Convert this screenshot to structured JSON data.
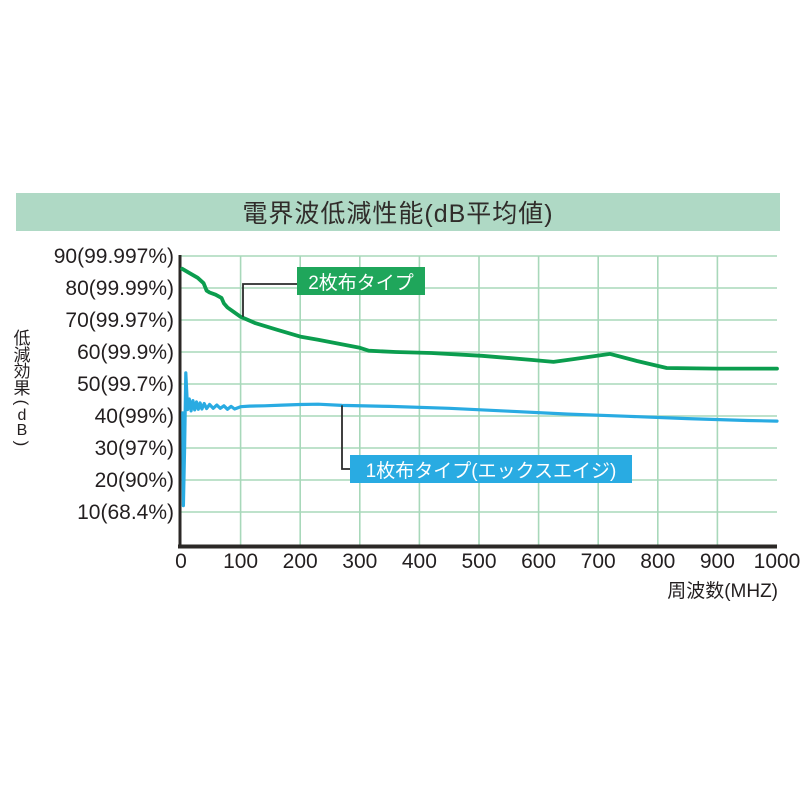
{
  "title": "電界波低減性能(dB平均値)",
  "colors": {
    "title_bg": "#afd9c5",
    "grid": "#a8d8ba",
    "axis": "#2b2826",
    "text": "#231f20",
    "connector": "#2b2b2b",
    "green_series": "#0b9d4e",
    "green_box": "#1fa65b",
    "blue_series": "#29abe2",
    "blue_box": "#29abe2"
  },
  "chart_data": {
    "type": "line",
    "title": "電界波低減性能(dB平均値)",
    "xlabel": "周波数(MHZ)",
    "ylabel": "低減効果(dB)",
    "xlim": [
      0,
      1000
    ],
    "ylim": [
      0,
      90
    ],
    "grid": true,
    "legend_position": "inline-callouts",
    "x_ticks": [
      0,
      100,
      200,
      300,
      400,
      500,
      600,
      700,
      800,
      900,
      1000
    ],
    "y_ticks": [
      {
        "value": 90,
        "label": "90(99.997%)"
      },
      {
        "value": 80,
        "label": "80(99.99%)"
      },
      {
        "value": 70,
        "label": "70(99.97%)"
      },
      {
        "value": 60,
        "label": "60(99.9%)"
      },
      {
        "value": 50,
        "label": "50(99.7%)"
      },
      {
        "value": 40,
        "label": "40(99%)"
      },
      {
        "value": 30,
        "label": "30(97%)"
      },
      {
        "value": 20,
        "label": "20(90%)"
      },
      {
        "value": 10,
        "label": "10(68.4%)"
      }
    ],
    "series": [
      {
        "name": "2枚布タイプ",
        "color": "#0b9d4e",
        "x": [
          2,
          15,
          28,
          38,
          43,
          48,
          58,
          68,
          72,
          78,
          88,
          100,
          125,
          160,
          200,
          230,
          265,
          300,
          315,
          360,
          420,
          505,
          590,
          625,
          660,
          720,
          765,
          815,
          900,
          1000
        ],
        "y": [
          86,
          84.6,
          83.2,
          81.5,
          79.2,
          78.6,
          77.9,
          76.9,
          75.2,
          73.9,
          72.6,
          71,
          69,
          67,
          64.8,
          63.8,
          62.6,
          61.3,
          60.4,
          60,
          59.7,
          58.8,
          57.5,
          56.9,
          57.8,
          59.4,
          57.2,
          55,
          54.8,
          54.8
        ]
      },
      {
        "name": "1枚布タイプ(エックスエイジ)",
        "color": "#29abe2",
        "x": [
          3,
          4,
          6,
          8,
          11,
          14,
          17,
          20,
          23,
          26,
          29,
          32,
          35,
          39,
          43,
          48,
          54,
          60,
          66,
          72,
          78,
          84,
          90,
          100,
          115,
          140,
          170,
          200,
          230,
          270,
          350,
          450,
          550,
          650,
          750,
          850,
          950,
          1000
        ],
        "y": [
          41,
          12,
          30,
          53.5,
          42,
          45.3,
          41.6,
          44.8,
          41.9,
          44.4,
          42.1,
          44.1,
          42.2,
          43.9,
          42.3,
          43.6,
          42.4,
          43.4,
          42.4,
          43.2,
          42.1,
          43,
          42.2,
          42.9,
          43.1,
          43.2,
          43.4,
          43.6,
          43.7,
          43.3,
          43,
          42.4,
          41.5,
          40.6,
          39.9,
          39.2,
          38.6,
          38.4
        ]
      }
    ],
    "callouts": [
      {
        "text": "2枚布タイプ",
        "bg": "#1fa65b",
        "points_to_mhz": 100
      },
      {
        "text": "1枚布タイプ(エックスエイジ)",
        "bg": "#29abe2",
        "points_to_mhz": 270
      }
    ]
  }
}
